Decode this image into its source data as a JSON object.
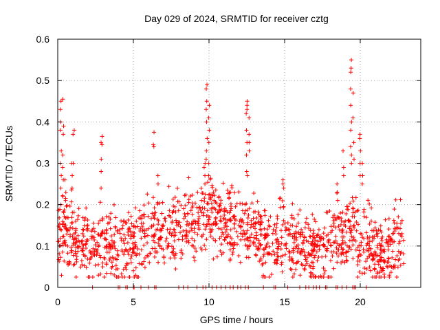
{
  "chart_data": {
    "type": "scatter",
    "title": "Day 029 of 2024, SRMTID for receiver cztg",
    "xlabel": "GPS time / hours",
    "ylabel": "SRMTID / TECUs",
    "xlim": [
      0,
      24
    ],
    "ylim": [
      0,
      0.6
    ],
    "x_ticks": [
      0,
      5,
      10,
      15,
      20
    ],
    "x_tick_labels": [
      "0",
      "5",
      "10",
      "15",
      "20"
    ],
    "y_ticks": [
      0,
      0.1,
      0.2,
      0.3,
      0.4,
      0.5,
      0.6
    ],
    "y_tick_labels": [
      "0",
      "0.1",
      "0.2",
      "0.3",
      "0.4",
      "0.5",
      "0.6"
    ],
    "grid": true,
    "marker": "+",
    "marker_color": "#ff0000",
    "series": [
      {
        "name": "SRMTID",
        "note": "values estimated from the plot; dense cloud summarized by a baseline envelope plus visible spikes and zero-value points",
        "baseline": {
          "x": [
            0.0,
            0.5,
            1.0,
            1.5,
            2.0,
            2.5,
            3.0,
            3.5,
            4.0,
            4.5,
            5.0,
            5.5,
            6.0,
            6.5,
            7.0,
            7.5,
            8.0,
            8.5,
            9.0,
            9.5,
            10.0,
            10.5,
            11.0,
            11.5,
            12.0,
            12.5,
            13.0,
            13.5,
            14.0,
            14.5,
            15.0,
            15.5,
            16.0,
            16.5,
            17.0,
            17.5,
            18.0,
            18.5,
            19.0,
            19.5,
            20.0,
            20.5,
            21.0,
            21.5,
            22.0,
            22.5,
            22.9
          ],
          "y": [
            0.12,
            0.13,
            0.12,
            0.11,
            0.1,
            0.1,
            0.12,
            0.11,
            0.1,
            0.09,
            0.1,
            0.11,
            0.13,
            0.15,
            0.14,
            0.13,
            0.15,
            0.16,
            0.16,
            0.17,
            0.2,
            0.17,
            0.16,
            0.15,
            0.14,
            0.15,
            0.13,
            0.12,
            0.11,
            0.11,
            0.13,
            0.11,
            0.1,
            0.09,
            0.09,
            0.09,
            0.1,
            0.12,
            0.13,
            0.14,
            0.12,
            0.11,
            0.08,
            0.08,
            0.09,
            0.12,
            0.1
          ]
        },
        "spikes": [
          {
            "x": 0.2,
            "y": [
              0.45,
              0.43,
              0.4,
              0.38,
              0.33,
              0.3,
              0.27,
              0.24,
              0.2
            ]
          },
          {
            "x": 0.35,
            "y": [
              0.455,
              0.39,
              0.37,
              0.32,
              0.29,
              0.26,
              0.22
            ]
          },
          {
            "x": 0.5,
            "y": [
              0.26,
              0.23,
              0.21
            ]
          },
          {
            "x": 0.95,
            "y": [
              0.3,
              0.27,
              0.24
            ]
          },
          {
            "x": 1.05,
            "y": [
              0.38,
              0.37,
              0.3
            ]
          },
          {
            "x": 2.9,
            "y": [
              0.365,
              0.35,
              0.345,
              0.31,
              0.28,
              0.24
            ]
          },
          {
            "x": 6.35,
            "y": [
              0.375,
              0.345,
              0.34
            ]
          },
          {
            "x": 6.6,
            "y": [
              0.27,
              0.25
            ]
          },
          {
            "x": 9.7,
            "y": [
              0.3,
              0.29,
              0.27,
              0.25
            ]
          },
          {
            "x": 9.85,
            "y": [
              0.49,
              0.48,
              0.45,
              0.43,
              0.4,
              0.36,
              0.33,
              0.31
            ]
          },
          {
            "x": 10.0,
            "y": [
              0.44,
              0.41,
              0.38,
              0.35,
              0.3,
              0.27
            ]
          },
          {
            "x": 12.5,
            "y": [
              0.45,
              0.44,
              0.43,
              0.42,
              0.38,
              0.35,
              0.32,
              0.28,
              0.27
            ]
          },
          {
            "x": 12.65,
            "y": [
              0.41,
              0.37,
              0.35,
              0.33
            ]
          },
          {
            "x": 14.9,
            "y": [
              0.26,
              0.25,
              0.24
            ]
          },
          {
            "x": 18.5,
            "y": [
              0.25,
              0.23,
              0.21
            ]
          },
          {
            "x": 18.9,
            "y": [
              0.33,
              0.29,
              0.27
            ]
          },
          {
            "x": 19.4,
            "y": [
              0.55,
              0.53,
              0.52,
              0.48,
              0.44,
              0.4,
              0.38,
              0.34,
              0.32,
              0.3
            ]
          },
          {
            "x": 19.55,
            "y": [
              0.47,
              0.41,
              0.35,
              0.31
            ]
          },
          {
            "x": 20.0,
            "y": [
              0.37,
              0.36,
              0.33,
              0.3,
              0.27
            ]
          },
          {
            "x": 20.15,
            "y": [
              0.3,
              0.27,
              0.25
            ]
          }
        ],
        "zeros_x": [
          2.3,
          4.0,
          4.1,
          4.5,
          4.6,
          5.0,
          5.05,
          5.5,
          6.0,
          6.4,
          6.5,
          8.0,
          8.3,
          8.6,
          9.2,
          9.6,
          9.8,
          10.2,
          10.5,
          10.8,
          11.1,
          11.4,
          11.6,
          11.9,
          12.1,
          12.4,
          12.6,
          13.6,
          14.3,
          14.4,
          15.2,
          16.0,
          16.4,
          16.6,
          16.9,
          17.1,
          17.3,
          17.7,
          17.8,
          18.4,
          18.5,
          18.8,
          19.1,
          19.5,
          19.6,
          19.7,
          20.4
        ]
      }
    ]
  }
}
